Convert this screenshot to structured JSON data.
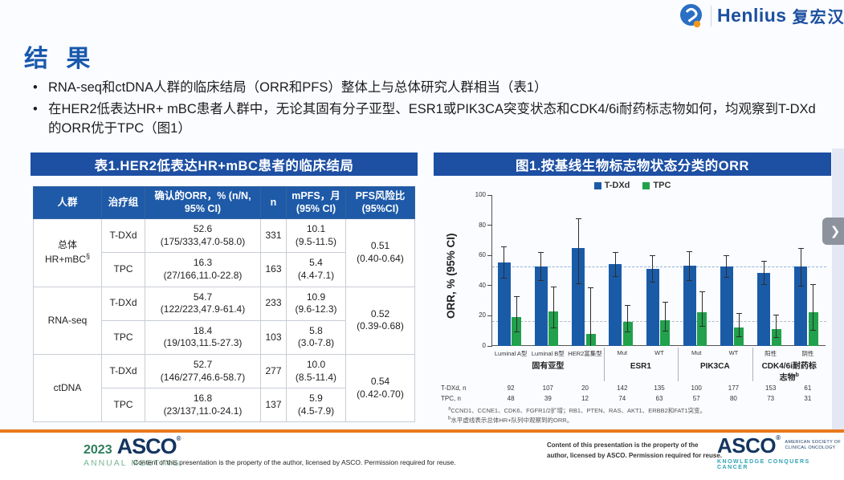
{
  "colors": {
    "accent_blue": "#1d4fa3",
    "bar_blue": "#1a5ba8",
    "bar_green": "#21a14b",
    "orange_rule": "#e8791d"
  },
  "header": {
    "brand": "Henlius",
    "brand_cn": "复宏汉霖"
  },
  "slide": {
    "title": "结 果",
    "bullets": [
      "RNA-seq和ctDNA人群的临床结局（ORR和PFS）整体上与总体研究人群相当（表1）",
      "在HER2低表达HR+ mBC患者人群中，无论其固有分子亚型、ESR1或PIK3CA突变状态和CDK4/6i耐药标志物如何，均观察到T-DXd的ORR优于TPC（图1）"
    ]
  },
  "table": {
    "title": "表1.HER2低表达HR+mBC患者的临床结局",
    "headers": [
      "人群",
      "治疗组",
      "确认的ORR，% (n/N, 95% CI)",
      "n",
      "mPFS，月 (95% CI)",
      "PFS风险比 (95%CI)"
    ],
    "groups": [
      {
        "population": "总体HR+mBC",
        "pop_sup": "§",
        "hr": "0.51",
        "hr_ci": "(0.40-0.64)",
        "rows": [
          {
            "arm": "T-DXd",
            "orr": "52.6",
            "orr_ci": "(175/333,47.0-58.0)",
            "n": "331",
            "mpfs": "10.1",
            "mpfs_ci": "(9.5-11.5)"
          },
          {
            "arm": "TPC",
            "orr": "16.3",
            "orr_ci": "(27/166,11.0-22.8)",
            "n": "163",
            "mpfs": "5.4",
            "mpfs_ci": "(4.4-7.1)"
          }
        ]
      },
      {
        "population": "RNA-seq",
        "pop_sup": "",
        "hr": "0.52",
        "hr_ci": "(0.39-0.68)",
        "rows": [
          {
            "arm": "T-DXd",
            "orr": "54.7",
            "orr_ci": "(122/223,47.9-61.4)",
            "n": "233",
            "mpfs": "10.9",
            "mpfs_ci": "(9.6-12.3)"
          },
          {
            "arm": "TPC",
            "orr": "18.4",
            "orr_ci": "(19/103,11.5-27.3)",
            "n": "103",
            "mpfs": "5.8",
            "mpfs_ci": "(3.0-7.8)"
          }
        ]
      },
      {
        "population": "ctDNA",
        "pop_sup": "",
        "hr": "0.54",
        "hr_ci": "(0.42-0.70)",
        "rows": [
          {
            "arm": "T-DXd",
            "orr": "52.7",
            "orr_ci": "(146/277,46.6-58.7)",
            "n": "277",
            "mpfs": "10.0",
            "mpfs_ci": "(8.5-11.4)"
          },
          {
            "arm": "TPC",
            "orr": "16.8",
            "orr_ci": "(23/137,11.0-24.1)",
            "n": "137",
            "mpfs": "5.9",
            "mpfs_ci": "(4.5-7.9)"
          }
        ]
      }
    ]
  },
  "figure": {
    "title": "图1.按基线生物标志物状态分类的ORR",
    "n_rows": [
      {
        "label": "T-DXd, n",
        "values": [
          "92",
          "107",
          "20",
          "142",
          "135",
          "100",
          "177",
          "153",
          "61"
        ]
      },
      {
        "label": "TPC, n",
        "values": [
          "48",
          "39",
          "12",
          "74",
          "63",
          "57",
          "80",
          "73",
          "31"
        ]
      }
    ],
    "footnotes": [
      {
        "sup": "a",
        "text": "CCND1、CCNE1、CDK6、FGFR1/2扩增；RB1、PTEN、RAS、AKT1、ERBB2和FAT1突变。"
      },
      {
        "sup": "b",
        "text": "水平虚线表示总体HR+队列中观察到的ORR。"
      }
    ]
  },
  "chart_data": {
    "type": "bar",
    "title": "图1.按基线生物标志物状态分类的ORR",
    "xlabel": "",
    "ylabel": "ORR, % (95% CI)",
    "ylim": [
      0,
      100
    ],
    "yticks": [
      0,
      20,
      40,
      60,
      80,
      100
    ],
    "grid": false,
    "legend_position": "top",
    "legend": [
      {
        "name": "T-DXd",
        "color": "#1a5ba8"
      },
      {
        "name": "TPC",
        "color": "#21a14b"
      }
    ],
    "reference_lines": [
      52.6,
      16.3
    ],
    "categories": [
      "Luminal A型",
      "Luminal B型",
      "HER2富集型",
      "Mut",
      "WT",
      "Mut",
      "WT",
      "阳性",
      "阴性"
    ],
    "category_groups": [
      {
        "label": "固有亚型",
        "sup": "",
        "span": 3
      },
      {
        "label": "ESR1",
        "sup": "",
        "span": 2
      },
      {
        "label": "PIK3CA",
        "sup": "",
        "span": 2
      },
      {
        "label": "CDK4/6i耐药标志物",
        "sup": "b",
        "span": 2
      }
    ],
    "series": [
      {
        "name": "T-DXd",
        "values": [
          55.5,
          52.5,
          65,
          54,
          51,
          53,
          52.5,
          48.5,
          52.5
        ],
        "ci_low": [
          44.5,
          43,
          41,
          46,
          42,
          43,
          45,
          40.5,
          39.5
        ],
        "ci_high": [
          66,
          62,
          84.5,
          62.5,
          60,
          63,
          60,
          56.5,
          65
        ]
      },
      {
        "name": "TPC",
        "values": [
          19,
          23,
          8,
          16,
          17,
          22.5,
          12.5,
          11,
          22.5
        ],
        "ci_low": [
          9,
          11.5,
          0,
          9,
          9.5,
          13,
          6,
          5.5,
          10
        ],
        "ci_high": [
          33,
          39.5,
          39,
          27,
          29.5,
          36,
          22,
          20.5,
          41
        ]
      }
    ]
  },
  "player": {
    "next_label": "❯"
  },
  "footer": {
    "year": "2023",
    "brand": "ASCO",
    "meeting": "ANNUAL MEETING",
    "copyright_left": "Content of this presentation is the property of the author, licensed by ASCO. Permission required for reuse.",
    "copyright_right_1": "Content of this presentation is the property of the",
    "copyright_right_2": "author, licensed by ASCO. Permission required for reuse.",
    "asco_logo": "ASCO",
    "asco_society_1": "AMERICAN SOCIETY OF",
    "asco_society_2": "CLINICAL ONCOLOGY",
    "asco_tagline": "KNOWLEDGE CONQUERS CANCER"
  }
}
